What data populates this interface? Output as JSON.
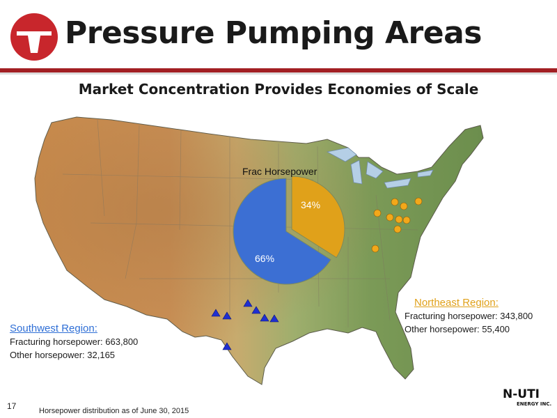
{
  "header": {
    "title": "Pressure Pumping Areas",
    "logo_icon": "red-circle-derrick-logo",
    "accent_color": "#a21f23"
  },
  "subtitle": "Market Concentration Provides Economies of Scale",
  "map": {
    "type": "shaded-relief-map",
    "region": "contiguous United States",
    "markers": {
      "southwest": {
        "shape": "triangle",
        "color": "#1f2fd1",
        "count": 7
      },
      "northeast": {
        "shape": "circle",
        "color": "#f2a81a",
        "count": 10
      }
    }
  },
  "pie": {
    "title": "Frac Horsepower",
    "slices": [
      {
        "label": "34%",
        "value": 34,
        "color": "#e0a11a"
      },
      {
        "label": "66%",
        "value": 66,
        "color": "#3c6fd3"
      }
    ]
  },
  "regions": {
    "southwest": {
      "name": "Southwest Region:",
      "fracturing": "Fracturing horsepower: 663,800",
      "other": "Other horsepower: 32,165",
      "color": "#2f6fd6"
    },
    "northeast": {
      "name": "Northeast Region:",
      "fracturing": "Fracturing horsepower: 343,800",
      "other": "Other horsepower: 55,400",
      "color": "#e0a11a"
    }
  },
  "footer": {
    "slide_number": "17",
    "footnote": "Horsepower distribution as of June 30, 2015",
    "brand_name": "N-UTI",
    "brand_tag": "ENERGY INC."
  }
}
